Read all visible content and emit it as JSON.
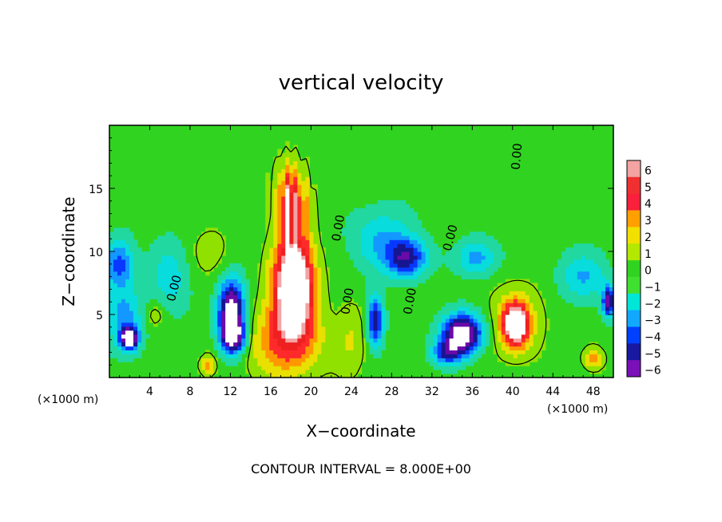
{
  "chart_data": {
    "type": "heatmap",
    "title": "vertical velocity",
    "xlabel": "X−coordinate",
    "ylabel": "Z−coordinate",
    "x_unit_label": "(×1000 m)",
    "x_unit_label_right": "(×1000 m)",
    "xlim": [
      0,
      50
    ],
    "ylim": [
      0,
      20
    ],
    "x_ticks": [
      4,
      8,
      12,
      16,
      20,
      24,
      28,
      32,
      36,
      40,
      44,
      48
    ],
    "y_ticks": [
      5,
      10,
      15
    ],
    "color_range": [
      -6,
      6
    ],
    "colorbar_ticks": [
      "6",
      "5",
      "4",
      "3",
      "2",
      "1",
      "0",
      "−1",
      "−2",
      "−3",
      "−4",
      "−5",
      "−6"
    ],
    "colorbar_colors": [
      "#f4a3a3",
      "#f03030",
      "#f8203a",
      "#ffa000",
      "#f2e000",
      "#b4e800",
      "#30d420",
      "#40e030",
      "#00e6d8",
      "#12a8ff",
      "#0040ff",
      "#1818a0",
      "#7a10b8"
    ],
    "contour_labels": [
      "0.00",
      "0.00",
      "0.00",
      "0.00",
      "0.00",
      "0.00"
    ],
    "footnote": "CONTOUR INTERVAL = 8.000E+00",
    "features": [
      {
        "x": 18.3,
        "z": 7.5,
        "w": 10,
        "sx": 1.9,
        "sz": 3.6
      },
      {
        "x": 18.0,
        "z": 14.0,
        "w": 4.5,
        "sx": 1.4,
        "sz": 2.8
      },
      {
        "x": 17.5,
        "z": 3.0,
        "w": 4,
        "sx": 3.5,
        "sz": 3.0
      },
      {
        "x": 40.3,
        "z": 4.2,
        "w": 8,
        "sx": 1.2,
        "sz": 1.6
      },
      {
        "x": 40.3,
        "z": 4.5,
        "w": 2,
        "sx": 3.0,
        "sz": 3.0
      },
      {
        "x": 9.8,
        "z": 1.0,
        "w": 3,
        "sx": 0.7,
        "sz": 0.8
      },
      {
        "x": 48.0,
        "z": 1.5,
        "w": 3,
        "sx": 1.0,
        "sz": 0.9
      },
      {
        "x": 2.0,
        "z": 3.1,
        "w": -8,
        "sx": 0.8,
        "sz": 0.8
      },
      {
        "x": 1.5,
        "z": 4.5,
        "w": -3,
        "sx": 1.8,
        "sz": 2.5
      },
      {
        "x": 1.0,
        "z": 9.0,
        "w": -4,
        "sx": 1.5,
        "sz": 2.0
      },
      {
        "x": 12.1,
        "z": 5.3,
        "w": -8,
        "sx": 1.3,
        "sz": 2.4
      },
      {
        "x": 12.3,
        "z": 3.2,
        "w": -6,
        "sx": 1.2,
        "sz": 1.3
      },
      {
        "x": 26.4,
        "z": 4.5,
        "w": -5.5,
        "sx": 0.8,
        "sz": 2.0
      },
      {
        "x": 29.5,
        "z": 9.5,
        "w": -5,
        "sx": 2.0,
        "sz": 1.5
      },
      {
        "x": 27.0,
        "z": 11.0,
        "w": -2.5,
        "sx": 3.0,
        "sz": 2.5
      },
      {
        "x": 35.0,
        "z": 3.5,
        "w": -8,
        "sx": 2.0,
        "sz": 1.6
      },
      {
        "x": 33.5,
        "z": 2.0,
        "w": -4,
        "sx": 1.5,
        "sz": 1.0
      },
      {
        "x": 36.5,
        "z": 9.5,
        "w": -3,
        "sx": 2.0,
        "sz": 1.5
      },
      {
        "x": 49.5,
        "z": 6.0,
        "w": -6,
        "sx": 0.6,
        "sz": 1.2
      },
      {
        "x": 47.0,
        "z": 8.0,
        "w": -2.5,
        "sx": 2.5,
        "sz": 2.0
      },
      {
        "x": 6.0,
        "z": 8.0,
        "w": -2,
        "sx": 2.0,
        "sz": 3.0
      },
      {
        "x": 10.0,
        "z": 10.0,
        "w": 1.2,
        "sx": 2.0,
        "sz": 2.0
      },
      {
        "x": 24.0,
        "z": 3.0,
        "w": 1.5,
        "sx": 1.5,
        "sz": 3.0
      },
      {
        "x": 4.5,
        "z": 5.0,
        "w": 1.5,
        "sx": 1.0,
        "sz": 1.0
      }
    ]
  }
}
